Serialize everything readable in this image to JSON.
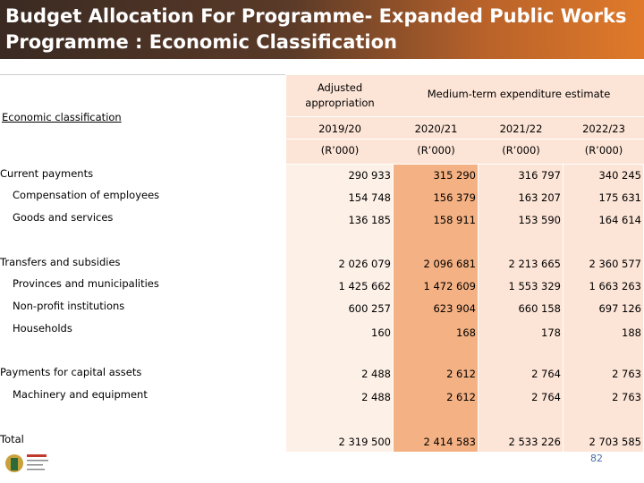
{
  "header": {
    "title": "Budget Allocation For Programme- Expanded Public Works Programme : Economic Classification"
  },
  "table": {
    "row_header": "Economic classification",
    "column_groups": [
      "Adjusted appropriation",
      "Medium-term expenditure estimate"
    ],
    "years": [
      "2019/20",
      "2020/21",
      "2021/22",
      "2022/23"
    ],
    "units": [
      "(R’000)",
      "(R’000)",
      "(R’000)",
      "(R’000)"
    ],
    "groups": [
      {
        "label": "Current payments",
        "values": [
          "290 933",
          "315 290",
          "316 797",
          "340 245"
        ],
        "items": [
          {
            "label": "Compensation of employees",
            "values": [
              "154 748",
              "156 379",
              "163 207",
              "175 631"
            ]
          },
          {
            "label": "Goods and services",
            "values": [
              "136 185",
              "158 911",
              "153 590",
              "164 614"
            ]
          }
        ]
      },
      {
        "label": "Transfers and subsidies",
        "values": [
          "2 026 079",
          "2 096 681",
          "2 213 665",
          "2 360 577"
        ],
        "items": [
          {
            "label": "Provinces and municipalities",
            "values": [
              "1 425 662",
              "1 472 609",
              "1 553 329",
              "1 663 263"
            ]
          },
          {
            "label": "Non-profit institutions",
            "values": [
              "600 257",
              "623 904",
              "660 158",
              "697 126"
            ]
          },
          {
            "label": "Households",
            "values": [
              "160",
              "168",
              "178",
              "188"
            ]
          }
        ]
      },
      {
        "label": "Payments for capital assets",
        "values": [
          "2 488",
          "2 612",
          "2 764",
          "2 763"
        ],
        "items": [
          {
            "label": "Machinery and equipment",
            "values": [
              "2 488",
              "2 612",
              "2 764",
              "2 763"
            ]
          }
        ]
      }
    ],
    "total": {
      "label": "Total",
      "values": [
        "2 319 500",
        "2 414 583",
        "2 533 226",
        "2 703 585"
      ]
    }
  },
  "footer": {
    "page_number": "82"
  }
}
